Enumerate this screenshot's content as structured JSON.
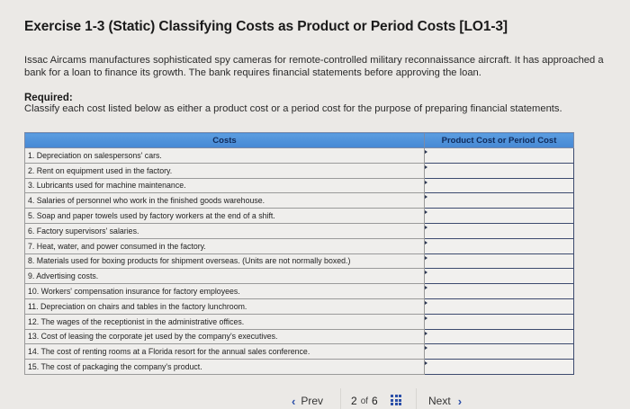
{
  "title": "Exercise 1-3 (Static) Classifying Costs as Product or Period Costs [LO1-3]",
  "intro": "Issac Aircams manufactures sophisticated spy cameras for remote-controlled military reconnaissance aircraft. It has approached a bank for a loan to finance its growth. The bank requires financial statements before approving the loan.",
  "required": {
    "label": "Required:",
    "text": "Classify each cost listed below as either a product cost or a period cost for the purpose of preparing financial statements."
  },
  "table": {
    "headers": [
      "Costs",
      "Product Cost or Period Cost"
    ],
    "rows": [
      {
        "cost": "1. Depreciation on salespersons' cars.",
        "answer": ""
      },
      {
        "cost": "2. Rent on equipment used in the factory.",
        "answer": ""
      },
      {
        "cost": "3. Lubricants used for machine maintenance.",
        "answer": ""
      },
      {
        "cost": "4. Salaries of personnel who work in the finished goods warehouse.",
        "answer": ""
      },
      {
        "cost": "5. Soap and paper towels used by factory workers at the end of a shift.",
        "answer": ""
      },
      {
        "cost": "6. Factory supervisors' salaries.",
        "answer": ""
      },
      {
        "cost": "7. Heat, water, and power consumed in the factory.",
        "answer": ""
      },
      {
        "cost": "8. Materials used for boxing products for shipment overseas. (Units are not normally boxed.)",
        "answer": ""
      },
      {
        "cost": "9. Advertising costs.",
        "answer": ""
      },
      {
        "cost": "10. Workers' compensation insurance for factory employees.",
        "answer": ""
      },
      {
        "cost": "11. Depreciation on chairs and tables in the factory lunchroom.",
        "answer": ""
      },
      {
        "cost": "12. The wages of the receptionist in the administrative offices.",
        "answer": ""
      },
      {
        "cost": "13. Cost of leasing the corporate jet used by the company's executives.",
        "answer": ""
      },
      {
        "cost": "14. The cost of renting rooms at a Florida resort for the annual sales conference.",
        "answer": ""
      },
      {
        "cost": "15. The cost of packaging the company's product.",
        "answer": ""
      }
    ]
  },
  "nav": {
    "prev_label": "Prev",
    "prev_icon": "chevron-left-icon",
    "current_page": "2",
    "of_label": "of",
    "total_pages": "6",
    "grid_icon": "grid-icon",
    "next_label": "Next",
    "next_icon": "chevron-right-icon",
    "prev_glyph": "‹",
    "next_glyph": "›"
  },
  "colors": {
    "header_bg": "#4a8fd9",
    "header_text": "#0f2a5a",
    "accent": "#2b4fa8",
    "background": "#ebe9e6"
  }
}
